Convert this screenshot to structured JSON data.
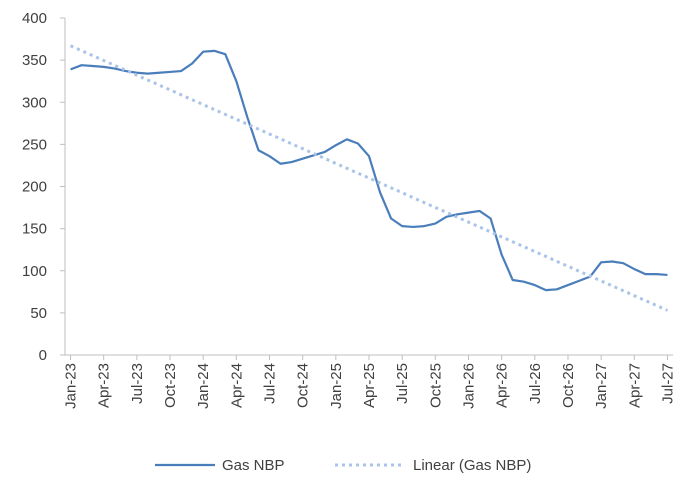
{
  "chart_data": {
    "type": "line",
    "categories": [
      "Jan-23",
      null,
      null,
      "Apr-23",
      null,
      null,
      "Jul-23",
      null,
      null,
      "Oct-23",
      null,
      null,
      "Jan-24",
      null,
      null,
      "Apr-24",
      null,
      null,
      "Jul-24",
      null,
      null,
      "Oct-24",
      null,
      null,
      "Jan-25",
      null,
      null,
      "Apr-25",
      null,
      null,
      "Jul-25",
      null,
      null,
      "Oct-25",
      null,
      null,
      "Jan-26",
      null,
      null,
      "Apr-26",
      null,
      null,
      "Jul-26",
      null,
      null,
      "Oct-26",
      null,
      null,
      "Jan-27",
      null,
      null,
      "Apr-27",
      null,
      null,
      "Jul-27"
    ],
    "series": [
      {
        "name": "Gas NBP",
        "color": "#4a7ebb",
        "style": "solid",
        "values": [
          339,
          344,
          343,
          342,
          340,
          337,
          335,
          334,
          335,
          336,
          337,
          346,
          360,
          361,
          357,
          325,
          282,
          243,
          236,
          227,
          229,
          233,
          237,
          241,
          249,
          256,
          251,
          236,
          193,
          162,
          153,
          152,
          153,
          156,
          164,
          167,
          169,
          171,
          162,
          119,
          89,
          87,
          83,
          77,
          78,
          83,
          88,
          93,
          110,
          111,
          109,
          102,
          96,
          96,
          95
        ]
      },
      {
        "name": "Linear (Gas NBP)",
        "color": "#a9c4e8",
        "style": "dotted",
        "values": [
          367,
          361.2,
          355.4,
          349.6,
          343.7,
          337.9,
          332.1,
          326.3,
          320.5,
          314.7,
          308.9,
          303.0,
          297.2,
          291.4,
          285.6,
          279.8,
          274.0,
          268.1,
          262.3,
          256.5,
          250.7,
          244.9,
          239.1,
          233.3,
          227.4,
          221.6,
          215.8,
          210.0,
          204.2,
          198.4,
          192.6,
          186.7,
          180.9,
          175.1,
          169.3,
          163.5,
          157.7,
          151.9,
          146.0,
          140.2,
          134.4,
          128.6,
          122.8,
          117.0,
          111.1,
          105.3,
          99.5,
          93.7,
          87.9,
          82.1,
          76.3,
          70.4,
          64.6,
          58.8,
          53.0
        ]
      }
    ],
    "ylim": [
      0,
      400
    ],
    "yticks": [
      0,
      50,
      100,
      150,
      200,
      250,
      300,
      350,
      400
    ],
    "grid": false,
    "legend": "bottom"
  }
}
